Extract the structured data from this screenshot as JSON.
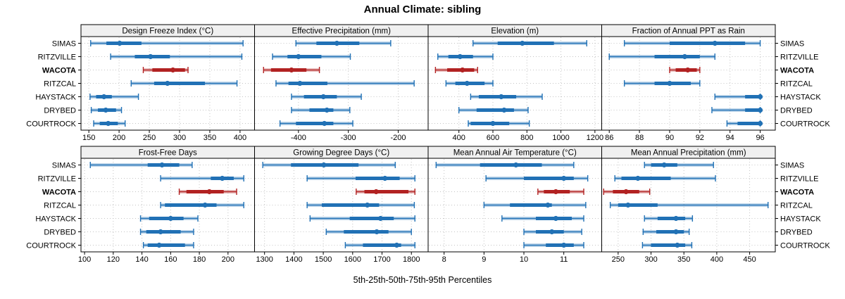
{
  "title": "Annual Climate: sibling",
  "caption": "5th-25th-50th-75th-95th Percentiles",
  "stations": [
    {
      "name": "SIMAS",
      "highlight": false
    },
    {
      "name": "RITZVILLE",
      "highlight": false
    },
    {
      "name": "WACOTA",
      "highlight": true
    },
    {
      "name": "RITZCAL",
      "highlight": false
    },
    {
      "name": "HAYSTACK",
      "highlight": false
    },
    {
      "name": "DRYBED",
      "highlight": false
    },
    {
      "name": "COURTROCK",
      "highlight": false
    }
  ],
  "colors": {
    "series_blue": "#2171B5",
    "highlight_red": "#B22222",
    "band_alpha": 0.3,
    "grid": "#C4C4C4",
    "header_bg": "#F0F0F0",
    "panel_border": "#000000",
    "text": "#000000"
  },
  "chart_data": {
    "type": "percentile-interval",
    "percentile_labels": [
      "5th",
      "25th",
      "50th",
      "75th",
      "95th"
    ],
    "legend_note": "red row = queried series (WACOTA), blue rows = sibling series",
    "panels": [
      {
        "title": "Design Freeze Index (°C)",
        "xlim": [
          137,
          424
        ],
        "ticks": [
          150,
          200,
          250,
          300,
          350,
          400
        ],
        "values": {
          "SIMAS": [
            153,
            179,
            201,
            237,
            405
          ],
          "RITZVILLE": [
            186,
            226,
            252,
            284,
            403
          ],
          "WACOTA": [
            240,
            255,
            289,
            309,
            314
          ],
          "RITZCAL": [
            220,
            258,
            280,
            342,
            395
          ],
          "HAYSTACK": [
            152,
            162,
            175,
            188,
            232
          ],
          "DRYBED": [
            154,
            165,
            178,
            195,
            204
          ],
          "COURTROCK": [
            158,
            168,
            182,
            198,
            210
          ]
        }
      },
      {
        "title": "Effective Precipitation (mm)",
        "xlim": [
          -488,
          -140
        ],
        "ticks": [
          -400,
          -300,
          -200
        ],
        "values": {
          "SIMAS": [
            -405,
            -364,
            -323,
            -278,
            -215
          ],
          "RITZVILLE": [
            -452,
            -422,
            -400,
            -354,
            -296
          ],
          "WACOTA": [
            -470,
            -455,
            -414,
            -384,
            -358
          ],
          "RITZCAL": [
            -445,
            -420,
            -397,
            -342,
            -168
          ],
          "HAYSTACK": [
            -414,
            -389,
            -350,
            -323,
            -274
          ],
          "DRYBED": [
            -414,
            -378,
            -343,
            -330,
            -297
          ],
          "COURTROCK": [
            -437,
            -405,
            -348,
            -330,
            -291
          ]
        }
      },
      {
        "title": "Elevation (m)",
        "xlim": [
          219,
          1240
        ],
        "ticks": [
          400,
          600,
          800,
          1000,
          1200
        ],
        "values": {
          "SIMAS": [
            483,
            628,
            773,
            959,
            1152
          ],
          "RITZVILLE": [
            276,
            338,
            407,
            483,
            600
          ],
          "WACOTA": [
            262,
            331,
            421,
            490,
            510
          ],
          "RITZCAL": [
            324,
            379,
            448,
            551,
            600
          ],
          "HAYSTACK": [
            469,
            517,
            649,
            737,
            890
          ],
          "DRYBED": [
            400,
            504,
            666,
            724,
            807
          ],
          "COURTROCK": [
            455,
            469,
            600,
            696,
            814
          ]
        }
      },
      {
        "title": "Fraction of Annual PPT as Rain",
        "xlim": [
          85.5,
          97
        ],
        "ticks": [
          86,
          88,
          90,
          92,
          94,
          96
        ],
        "values": {
          "SIMAS": [
            87,
            90,
            93,
            95,
            96
          ],
          "RITZVILLE": [
            86,
            89,
            91,
            92,
            93
          ],
          "WACOTA": [
            90,
            90.4,
            91.2,
            91.8,
            92
          ],
          "RITZCAL": [
            87,
            89,
            90,
            91.4,
            92
          ],
          "HAYSTACK": [
            93,
            95,
            96,
            96,
            96
          ],
          "DRYBED": [
            92.8,
            95,
            96,
            96,
            96
          ],
          "COURTROCK": [
            93.8,
            94.5,
            96,
            96,
            96
          ]
        }
      },
      {
        "title": "Frost-Free Days",
        "xlim": [
          97.5,
          218.5
        ],
        "ticks": [
          100,
          120,
          140,
          160,
          180,
          200
        ],
        "values": {
          "SIMAS": [
            104,
            144,
            154,
            166,
            175
          ],
          "RITZVILLE": [
            153,
            188,
            196,
            204,
            211
          ],
          "WACOTA": [
            166,
            171,
            187,
            197,
            206
          ],
          "RITZCAL": [
            153,
            156,
            184,
            192,
            211
          ],
          "HAYSTACK": [
            139,
            145,
            160,
            169,
            179
          ],
          "DRYBED": [
            139,
            143,
            153,
            167,
            176
          ],
          "COURTROCK": [
            141,
            144,
            152,
            170,
            176
          ]
        }
      },
      {
        "title": "Growing Degree Days (°C)",
        "xlim": [
          1266,
          1857
        ],
        "ticks": [
          1300,
          1400,
          1500,
          1600,
          1700,
          1800
        ],
        "values": {
          "SIMAS": [
            1294,
            1390,
            1502,
            1620,
            1745
          ],
          "RITZVILLE": [
            1445,
            1610,
            1710,
            1760,
            1812
          ],
          "WACOTA": [
            1612,
            1640,
            1680,
            1790,
            1812
          ],
          "RITZCAL": [
            1445,
            1495,
            1650,
            1690,
            1810
          ],
          "HAYSTACK": [
            1455,
            1590,
            1695,
            1740,
            1812
          ],
          "DRYBED": [
            1510,
            1570,
            1682,
            1722,
            1800
          ],
          "COURTROCK": [
            1575,
            1635,
            1750,
            1765,
            1812
          ]
        }
      },
      {
        "title": "Mean Annual Air Temperature (°C)",
        "xlim": [
          7.6,
          11.95
        ],
        "ticks": [
          8,
          9,
          10,
          11
        ],
        "values": {
          "SIMAS": [
            7.8,
            8.9,
            9.8,
            10.45,
            11.25
          ],
          "RITZVILLE": [
            9.05,
            10.0,
            11.0,
            11.25,
            11.6
          ],
          "WACOTA": [
            10.35,
            10.5,
            10.8,
            11.15,
            11.5
          ],
          "RITZCAL": [
            9.0,
            9.65,
            10.6,
            10.7,
            11.55
          ],
          "HAYSTACK": [
            9.45,
            10.3,
            10.8,
            11.2,
            11.5
          ],
          "DRYBED": [
            10.0,
            10.3,
            10.7,
            11.0,
            11.45
          ],
          "COURTROCK": [
            10.0,
            10.55,
            11.0,
            11.25,
            11.5
          ]
        }
      },
      {
        "title": "Mean Annual Precipitation (mm)",
        "xlim": [
          225,
          489
        ],
        "ticks": [
          250,
          300,
          350,
          400,
          450
        ],
        "values": {
          "SIMAS": [
            290,
            300,
            320,
            340,
            395
          ],
          "RITZVILLE": [
            245,
            255,
            280,
            330,
            398
          ],
          "WACOTA": [
            228,
            242,
            262,
            282,
            298
          ],
          "RITZCAL": [
            238,
            250,
            265,
            310,
            478
          ],
          "HAYSTACK": [
            290,
            310,
            338,
            352,
            363
          ],
          "DRYBED": [
            288,
            308,
            338,
            350,
            358
          ],
          "COURTROCK": [
            287,
            300,
            340,
            352,
            362
          ]
        }
      }
    ]
  }
}
